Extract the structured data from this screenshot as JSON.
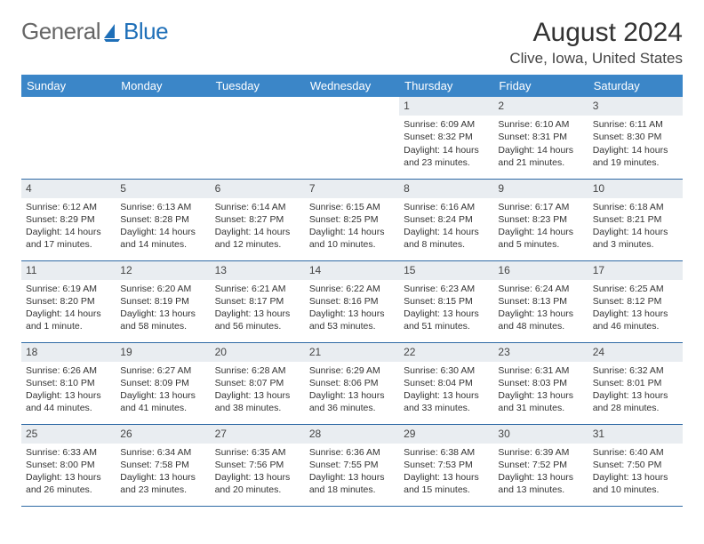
{
  "logo": {
    "gray": "General",
    "blue": "Blue"
  },
  "title": "August 2024",
  "location": "Clive, Iowa, United States",
  "colors": {
    "header_bg": "#3b86c8",
    "header_text": "#ffffff",
    "daynum_bg": "#e9edf1",
    "row_border": "#2f6aa5",
    "logo_blue": "#1e6fb8",
    "logo_gray": "#666666"
  },
  "weekdays": [
    "Sunday",
    "Monday",
    "Tuesday",
    "Wednesday",
    "Thursday",
    "Friday",
    "Saturday"
  ],
  "weeks": [
    [
      {
        "n": "",
        "sr": "",
        "ss": "",
        "dl1": "",
        "dl2": ""
      },
      {
        "n": "",
        "sr": "",
        "ss": "",
        "dl1": "",
        "dl2": ""
      },
      {
        "n": "",
        "sr": "",
        "ss": "",
        "dl1": "",
        "dl2": ""
      },
      {
        "n": "",
        "sr": "",
        "ss": "",
        "dl1": "",
        "dl2": ""
      },
      {
        "n": "1",
        "sr": "Sunrise: 6:09 AM",
        "ss": "Sunset: 8:32 PM",
        "dl1": "Daylight: 14 hours",
        "dl2": "and 23 minutes."
      },
      {
        "n": "2",
        "sr": "Sunrise: 6:10 AM",
        "ss": "Sunset: 8:31 PM",
        "dl1": "Daylight: 14 hours",
        "dl2": "and 21 minutes."
      },
      {
        "n": "3",
        "sr": "Sunrise: 6:11 AM",
        "ss": "Sunset: 8:30 PM",
        "dl1": "Daylight: 14 hours",
        "dl2": "and 19 minutes."
      }
    ],
    [
      {
        "n": "4",
        "sr": "Sunrise: 6:12 AM",
        "ss": "Sunset: 8:29 PM",
        "dl1": "Daylight: 14 hours",
        "dl2": "and 17 minutes."
      },
      {
        "n": "5",
        "sr": "Sunrise: 6:13 AM",
        "ss": "Sunset: 8:28 PM",
        "dl1": "Daylight: 14 hours",
        "dl2": "and 14 minutes."
      },
      {
        "n": "6",
        "sr": "Sunrise: 6:14 AM",
        "ss": "Sunset: 8:27 PM",
        "dl1": "Daylight: 14 hours",
        "dl2": "and 12 minutes."
      },
      {
        "n": "7",
        "sr": "Sunrise: 6:15 AM",
        "ss": "Sunset: 8:25 PM",
        "dl1": "Daylight: 14 hours",
        "dl2": "and 10 minutes."
      },
      {
        "n": "8",
        "sr": "Sunrise: 6:16 AM",
        "ss": "Sunset: 8:24 PM",
        "dl1": "Daylight: 14 hours",
        "dl2": "and 8 minutes."
      },
      {
        "n": "9",
        "sr": "Sunrise: 6:17 AM",
        "ss": "Sunset: 8:23 PM",
        "dl1": "Daylight: 14 hours",
        "dl2": "and 5 minutes."
      },
      {
        "n": "10",
        "sr": "Sunrise: 6:18 AM",
        "ss": "Sunset: 8:21 PM",
        "dl1": "Daylight: 14 hours",
        "dl2": "and 3 minutes."
      }
    ],
    [
      {
        "n": "11",
        "sr": "Sunrise: 6:19 AM",
        "ss": "Sunset: 8:20 PM",
        "dl1": "Daylight: 14 hours",
        "dl2": "and 1 minute."
      },
      {
        "n": "12",
        "sr": "Sunrise: 6:20 AM",
        "ss": "Sunset: 8:19 PM",
        "dl1": "Daylight: 13 hours",
        "dl2": "and 58 minutes."
      },
      {
        "n": "13",
        "sr": "Sunrise: 6:21 AM",
        "ss": "Sunset: 8:17 PM",
        "dl1": "Daylight: 13 hours",
        "dl2": "and 56 minutes."
      },
      {
        "n": "14",
        "sr": "Sunrise: 6:22 AM",
        "ss": "Sunset: 8:16 PM",
        "dl1": "Daylight: 13 hours",
        "dl2": "and 53 minutes."
      },
      {
        "n": "15",
        "sr": "Sunrise: 6:23 AM",
        "ss": "Sunset: 8:15 PM",
        "dl1": "Daylight: 13 hours",
        "dl2": "and 51 minutes."
      },
      {
        "n": "16",
        "sr": "Sunrise: 6:24 AM",
        "ss": "Sunset: 8:13 PM",
        "dl1": "Daylight: 13 hours",
        "dl2": "and 48 minutes."
      },
      {
        "n": "17",
        "sr": "Sunrise: 6:25 AM",
        "ss": "Sunset: 8:12 PM",
        "dl1": "Daylight: 13 hours",
        "dl2": "and 46 minutes."
      }
    ],
    [
      {
        "n": "18",
        "sr": "Sunrise: 6:26 AM",
        "ss": "Sunset: 8:10 PM",
        "dl1": "Daylight: 13 hours",
        "dl2": "and 44 minutes."
      },
      {
        "n": "19",
        "sr": "Sunrise: 6:27 AM",
        "ss": "Sunset: 8:09 PM",
        "dl1": "Daylight: 13 hours",
        "dl2": "and 41 minutes."
      },
      {
        "n": "20",
        "sr": "Sunrise: 6:28 AM",
        "ss": "Sunset: 8:07 PM",
        "dl1": "Daylight: 13 hours",
        "dl2": "and 38 minutes."
      },
      {
        "n": "21",
        "sr": "Sunrise: 6:29 AM",
        "ss": "Sunset: 8:06 PM",
        "dl1": "Daylight: 13 hours",
        "dl2": "and 36 minutes."
      },
      {
        "n": "22",
        "sr": "Sunrise: 6:30 AM",
        "ss": "Sunset: 8:04 PM",
        "dl1": "Daylight: 13 hours",
        "dl2": "and 33 minutes."
      },
      {
        "n": "23",
        "sr": "Sunrise: 6:31 AM",
        "ss": "Sunset: 8:03 PM",
        "dl1": "Daylight: 13 hours",
        "dl2": "and 31 minutes."
      },
      {
        "n": "24",
        "sr": "Sunrise: 6:32 AM",
        "ss": "Sunset: 8:01 PM",
        "dl1": "Daylight: 13 hours",
        "dl2": "and 28 minutes."
      }
    ],
    [
      {
        "n": "25",
        "sr": "Sunrise: 6:33 AM",
        "ss": "Sunset: 8:00 PM",
        "dl1": "Daylight: 13 hours",
        "dl2": "and 26 minutes."
      },
      {
        "n": "26",
        "sr": "Sunrise: 6:34 AM",
        "ss": "Sunset: 7:58 PM",
        "dl1": "Daylight: 13 hours",
        "dl2": "and 23 minutes."
      },
      {
        "n": "27",
        "sr": "Sunrise: 6:35 AM",
        "ss": "Sunset: 7:56 PM",
        "dl1": "Daylight: 13 hours",
        "dl2": "and 20 minutes."
      },
      {
        "n": "28",
        "sr": "Sunrise: 6:36 AM",
        "ss": "Sunset: 7:55 PM",
        "dl1": "Daylight: 13 hours",
        "dl2": "and 18 minutes."
      },
      {
        "n": "29",
        "sr": "Sunrise: 6:38 AM",
        "ss": "Sunset: 7:53 PM",
        "dl1": "Daylight: 13 hours",
        "dl2": "and 15 minutes."
      },
      {
        "n": "30",
        "sr": "Sunrise: 6:39 AM",
        "ss": "Sunset: 7:52 PM",
        "dl1": "Daylight: 13 hours",
        "dl2": "and 13 minutes."
      },
      {
        "n": "31",
        "sr": "Sunrise: 6:40 AM",
        "ss": "Sunset: 7:50 PM",
        "dl1": "Daylight: 13 hours",
        "dl2": "and 10 minutes."
      }
    ]
  ]
}
